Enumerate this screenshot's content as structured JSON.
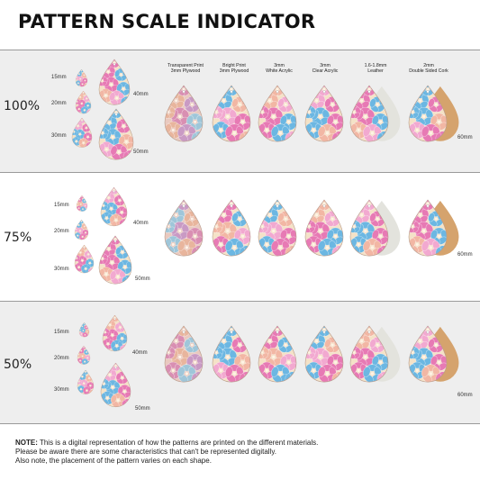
{
  "title": "PATTERN SCALE INDICATOR",
  "materials": [
    {
      "name": "Transparent Print",
      "detail": "3mm Plywood"
    },
    {
      "name": "Bright Print",
      "detail": "3mm Plywood"
    },
    {
      "name": "3mm",
      "detail": "White Acrylic"
    },
    {
      "name": "3mm",
      "detail": "Clear Acrylic"
    },
    {
      "name": "1.6-1.8mm",
      "detail": "Leather"
    },
    {
      "name": "2mm",
      "detail": "Double Sided Cork"
    }
  ],
  "sections": [
    {
      "scale": "100%",
      "sizes": [
        "15mm",
        "20mm",
        "30mm",
        "40mm",
        "50mm"
      ],
      "large_size": "60mm"
    },
    {
      "scale": "75%",
      "sizes": [
        "15mm",
        "20mm",
        "30mm",
        "40mm",
        "50mm"
      ],
      "large_size": "60mm"
    },
    {
      "scale": "50%",
      "sizes": [
        "15mm",
        "20mm",
        "30mm",
        "40mm",
        "50mm"
      ],
      "large_size": "60mm"
    }
  ],
  "note": {
    "label": "NOTE:",
    "line1": "This is a digital representation of how the patterns are printed on the different materials.",
    "line2": "Please be aware there are some characteristics that can't be represented digitally.",
    "line3": "Also note, the placement of the pattern varies on each shape."
  },
  "colors": {
    "pink": "#e77ab4",
    "blue": "#6cb7e2",
    "cream": "#f4e2c7",
    "peach": "#f2b7a4",
    "cork": "#d5a36d",
    "leather_back": "#e3e3dd",
    "shaded_band": "#eeeeee"
  }
}
